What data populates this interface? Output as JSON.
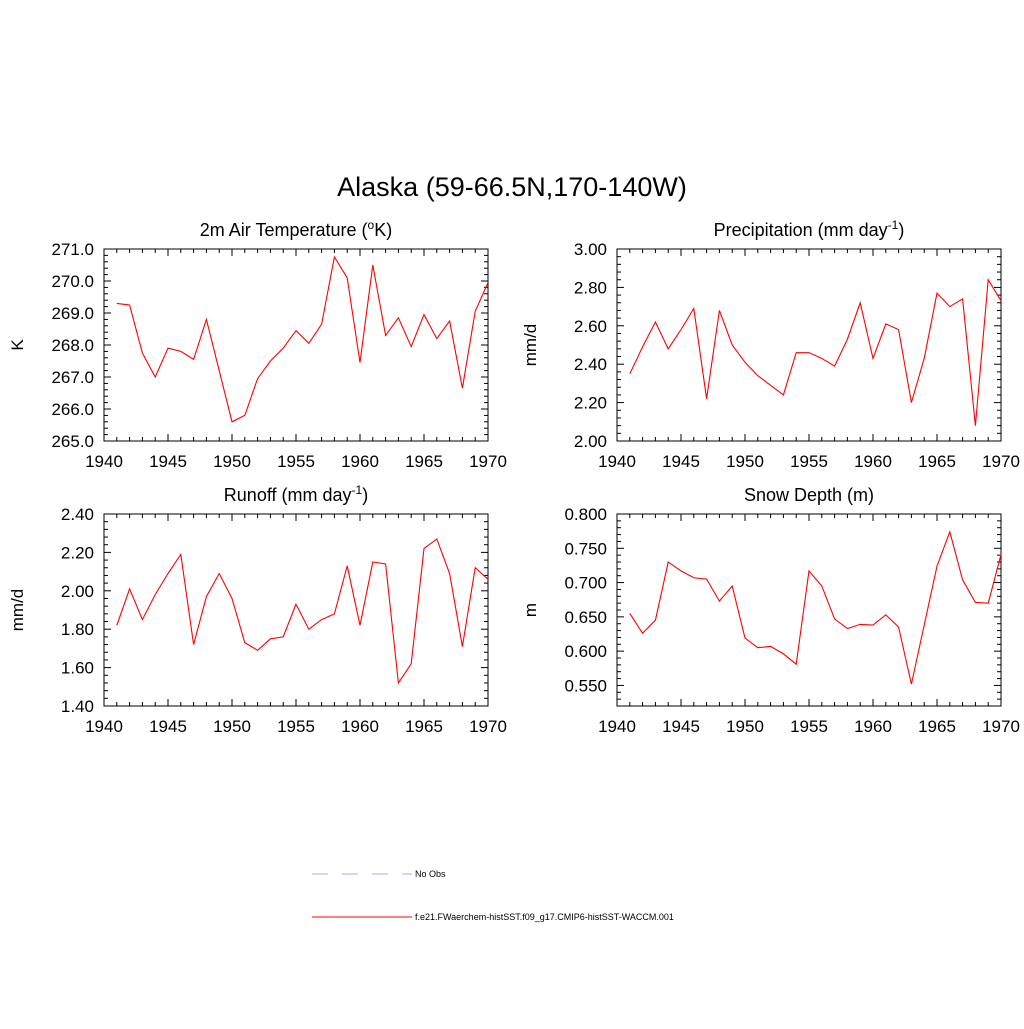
{
  "figure": {
    "title": "Alaska (59-66.5N,170-140W)"
  },
  "legend": [
    {
      "label": "No Obs",
      "color": "#aaaaee",
      "style": "dashed"
    },
    {
      "label": "f.e21.FWaerchem-histSST.f09_g17.CMIP6-histSST-WACCM.001",
      "color": "#ff0000",
      "style": "solid"
    }
  ],
  "chart_data": [
    {
      "type": "line",
      "title": "2m Air Temperature (",
      "title_sup": "o",
      "title_suffix": "K)",
      "ylabel": "K",
      "xlabel": "",
      "xlim": [
        1940,
        1970
      ],
      "ylim": [
        265.0,
        271.0
      ],
      "xticks": [
        1940,
        1945,
        1950,
        1955,
        1960,
        1965,
        1970
      ],
      "yticks": [
        "265.0",
        "266.0",
        "267.0",
        "268.0",
        "269.0",
        "270.0",
        "271.0"
      ],
      "grid": false,
      "x": [
        1941,
        1942,
        1943,
        1944,
        1945,
        1946,
        1947,
        1948,
        1949,
        1950,
        1951,
        1952,
        1953,
        1954,
        1955,
        1956,
        1957,
        1958,
        1959,
        1960,
        1961,
        1962,
        1963,
        1964,
        1965,
        1966,
        1967,
        1968,
        1969,
        1970
      ],
      "series": [
        {
          "color": "#ff0000",
          "values": [
            269.3,
            269.25,
            267.75,
            267.0,
            267.9,
            267.8,
            267.55,
            268.8,
            267.2,
            265.6,
            265.8,
            266.95,
            267.5,
            267.9,
            268.45,
            268.05,
            268.65,
            270.75,
            270.1,
            267.45,
            270.5,
            268.3,
            268.85,
            267.95,
            268.95,
            268.2,
            268.75,
            266.65,
            269.05,
            269.95
          ]
        }
      ]
    },
    {
      "type": "line",
      "title": "Precipitation (mm day",
      "title_sup": "-1",
      "title_suffix": ")",
      "ylabel": "mm/d",
      "xlabel": "",
      "xlim": [
        1940,
        1970
      ],
      "ylim": [
        2.0,
        3.0
      ],
      "xticks": [
        1940,
        1945,
        1950,
        1955,
        1960,
        1965,
        1970
      ],
      "yticks": [
        "2.00",
        "2.20",
        "2.40",
        "2.60",
        "2.80",
        "3.00"
      ],
      "grid": false,
      "x": [
        1941,
        1942,
        1943,
        1944,
        1945,
        1946,
        1947,
        1948,
        1949,
        1950,
        1951,
        1952,
        1953,
        1954,
        1955,
        1956,
        1957,
        1958,
        1959,
        1960,
        1961,
        1962,
        1963,
        1964,
        1965,
        1966,
        1967,
        1968,
        1969,
        1970
      ],
      "series": [
        {
          "color": "#ff0000",
          "values": [
            2.35,
            2.49,
            2.62,
            2.48,
            2.58,
            2.69,
            2.22,
            2.68,
            2.5,
            2.41,
            2.34,
            2.29,
            2.24,
            2.46,
            2.46,
            2.43,
            2.39,
            2.53,
            2.72,
            2.43,
            2.61,
            2.58,
            2.2,
            2.43,
            2.77,
            2.7,
            2.74,
            2.08,
            2.84,
            2.73
          ]
        }
      ]
    },
    {
      "type": "line",
      "title": "Runoff (mm day",
      "title_sup": "-1",
      "title_suffix": ")",
      "ylabel": "mm/d",
      "xlabel": "",
      "xlim": [
        1940,
        1970
      ],
      "ylim": [
        1.4,
        2.4
      ],
      "xticks": [
        1940,
        1945,
        1950,
        1955,
        1960,
        1965,
        1970
      ],
      "yticks": [
        "1.40",
        "1.60",
        "1.80",
        "2.00",
        "2.20",
        "2.40"
      ],
      "grid": false,
      "x": [
        1941,
        1942,
        1943,
        1944,
        1945,
        1946,
        1947,
        1948,
        1949,
        1950,
        1951,
        1952,
        1953,
        1954,
        1955,
        1956,
        1957,
        1958,
        1959,
        1960,
        1961,
        1962,
        1963,
        1964,
        1965,
        1966,
        1967,
        1968,
        1969,
        1970
      ],
      "series": [
        {
          "color": "#ff0000",
          "values": [
            1.82,
            2.01,
            1.85,
            1.98,
            2.09,
            2.19,
            1.72,
            1.97,
            2.09,
            1.96,
            1.73,
            1.69,
            1.75,
            1.76,
            1.93,
            1.8,
            1.85,
            1.88,
            2.13,
            1.82,
            2.15,
            2.14,
            1.52,
            1.62,
            2.22,
            2.27,
            2.09,
            1.71,
            2.12,
            2.06
          ]
        }
      ]
    },
    {
      "type": "line",
      "title": "Snow Depth (m)",
      "title_sup": "",
      "title_suffix": "",
      "ylabel": "m",
      "xlabel": "",
      "xlim": [
        1940,
        1970
      ],
      "ylim": [
        0.52,
        0.8
      ],
      "xticks": [
        1940,
        1945,
        1950,
        1955,
        1960,
        1965,
        1970
      ],
      "yticks": [
        "0.550",
        "0.600",
        "0.650",
        "0.700",
        "0.750",
        "0.800"
      ],
      "grid": false,
      "x": [
        1941,
        1942,
        1943,
        1944,
        1945,
        1946,
        1947,
        1948,
        1949,
        1950,
        1951,
        1952,
        1953,
        1954,
        1955,
        1956,
        1957,
        1958,
        1959,
        1960,
        1961,
        1962,
        1963,
        1964,
        1965,
        1966,
        1967,
        1968,
        1969,
        1970
      ],
      "series": [
        {
          "color": "#ff0000",
          "values": [
            0.655,
            0.626,
            0.645,
            0.73,
            0.717,
            0.707,
            0.705,
            0.673,
            0.695,
            0.619,
            0.605,
            0.607,
            0.596,
            0.581,
            0.717,
            0.695,
            0.647,
            0.633,
            0.639,
            0.638,
            0.653,
            0.635,
            0.552,
            0.638,
            0.724,
            0.774,
            0.704,
            0.671,
            0.67,
            0.741
          ]
        }
      ]
    }
  ]
}
